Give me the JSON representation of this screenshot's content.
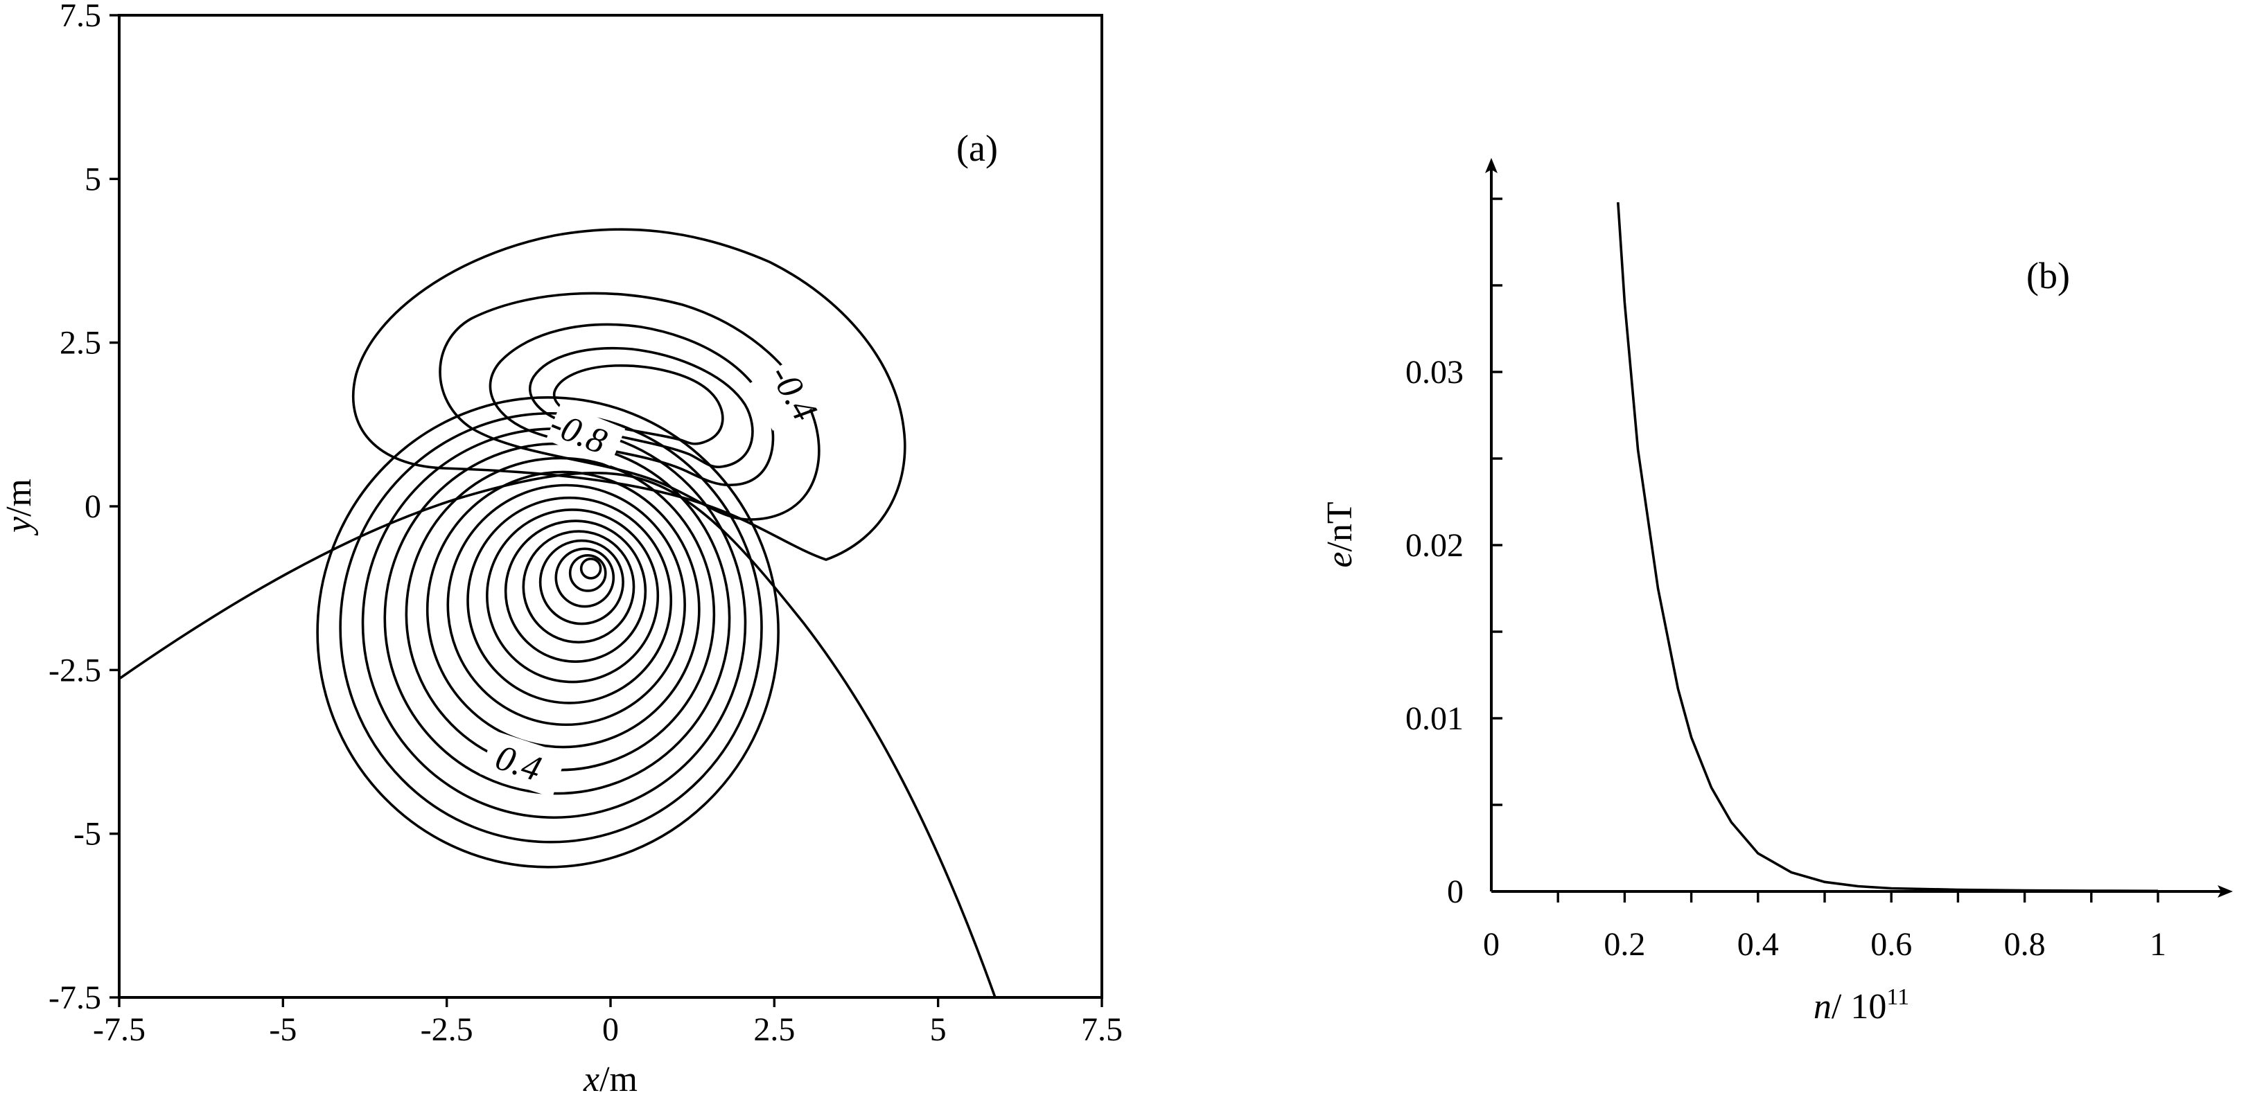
{
  "chart_data": [
    {
      "type": "contour",
      "panel_label": "(a)",
      "xlabel_var": "x",
      "xlabel_unit": "/m",
      "ylabel_var": "y",
      "ylabel_unit": "/m",
      "xlim": [
        -7.5,
        7.5
      ],
      "ylim": [
        -7.5,
        7.5
      ],
      "x_ticks": [
        "-7.5",
        "-5",
        "-2.5",
        "0",
        "2.5",
        "5",
        "7.5"
      ],
      "y_ticks": [
        "7.5",
        "5",
        "2.5",
        "0",
        "-2.5",
        "-5",
        "-7.5"
      ],
      "contour_labels": [
        "-0.4",
        "-0.8",
        "0.4"
      ],
      "negative_lobe_center": [
        0.2,
        1.6
      ],
      "positive_lobe_center": [
        -0.3,
        -0.95
      ],
      "zero_contour": [
        [
          -7.5,
          -2.65
        ],
        [
          -5,
          -1.3
        ],
        [
          -2.5,
          -0.1
        ],
        [
          -1,
          0.45
        ],
        [
          0.5,
          0.2
        ],
        [
          2,
          -1.2
        ],
        [
          3.5,
          -3.3
        ],
        [
          5,
          -5.9
        ],
        [
          5.85,
          -7.5
        ]
      ]
    },
    {
      "type": "line",
      "panel_label": "(b)",
      "xlabel_var": "n",
      "xlabel_unit": "/ 10",
      "xlabel_exp": "11",
      "ylabel_var": "e",
      "ylabel_unit": "/nT",
      "xlim": [
        0,
        1.1
      ],
      "ylim": [
        0,
        0.042
      ],
      "x_ticks": [
        "0",
        "0.2",
        "0.4",
        "0.6",
        "0.8",
        "1"
      ],
      "y_ticks": [
        "0",
        "0.01",
        "0.02",
        "0.03"
      ],
      "series": [
        {
          "x": [
            0.19,
            0.2,
            0.22,
            0.25,
            0.28,
            0.3,
            0.33,
            0.36,
            0.4,
            0.45,
            0.5,
            0.55,
            0.6,
            0.7,
            0.8,
            0.9,
            1.0
          ],
          "y": [
            0.0398,
            0.034,
            0.0255,
            0.0175,
            0.0117,
            0.0089,
            0.006,
            0.004,
            0.0022,
            0.0011,
            0.00055,
            0.0003,
            0.00018,
            0.0001,
            6e-05,
            4e-05,
            3e-05
          ]
        }
      ]
    }
  ]
}
